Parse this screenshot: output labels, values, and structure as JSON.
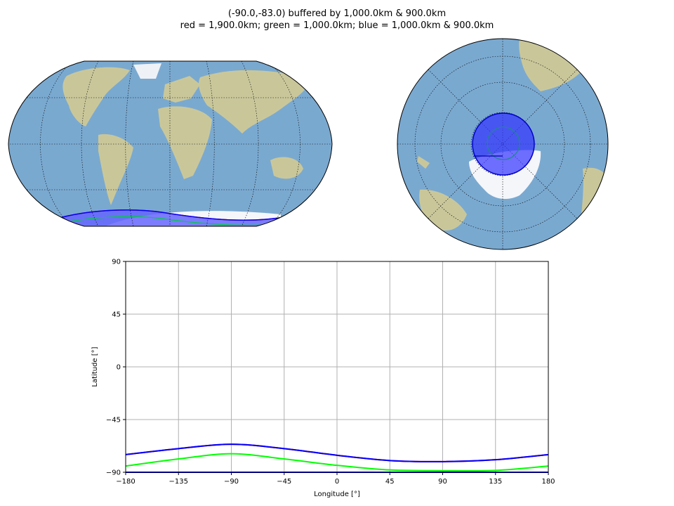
{
  "title_line1": "(-90.0,-83.0) buffered by 1,000.0km & 900.0km",
  "title_line2": "red = 1,900.0km; green = 1,000.0km; blue = 1,000.0km & 900.0km",
  "colors": {
    "red": "#ff0000",
    "green": "#00ff00",
    "blue": "#0000ff",
    "blue_fill": "#6666ff",
    "ocean": "#7aa9d0",
    "land": "#c9c79a",
    "ice": "#f4f6fa",
    "grid": "#b0b0b0"
  },
  "maps": [
    {
      "name": "robinson-world-map",
      "projection": "Robinson"
    },
    {
      "name": "orthographic-south-pole-map",
      "projection": "Orthographic"
    }
  ],
  "chart_data": {
    "type": "line",
    "xlabel": "Longitude [°]",
    "ylabel": "Latitude [°]",
    "xlim": [
      -180,
      180
    ],
    "ylim": [
      -90,
      90
    ],
    "xticks": [
      -180,
      -135,
      -90,
      -45,
      0,
      45,
      90,
      135,
      180
    ],
    "xtick_labels": [
      "−180",
      "−135",
      "−90",
      "−45",
      "0",
      "45",
      "90",
      "135",
      "180"
    ],
    "yticks": [
      -90,
      -45,
      0,
      45,
      90
    ],
    "ytick_labels": [
      "−90",
      "−45",
      "0",
      "45",
      "90"
    ],
    "grid": true,
    "series": [
      {
        "color": "red",
        "x": [
          -180,
          -135,
          -90,
          -45,
          0,
          45,
          90,
          135,
          180
        ],
        "y": [
          -74.9,
          -69.8,
          -66.1,
          -69.8,
          -75.5,
          -80.0,
          -80.9,
          -79.3,
          -74.9
        ]
      },
      {
        "color": "green",
        "x": [
          -180,
          -135,
          -90,
          -45,
          0,
          45,
          90,
          135,
          180
        ],
        "y": [
          -84.7,
          -78.6,
          -74.2,
          -78.6,
          -84.1,
          -88.0,
          -88.7,
          -88.4,
          -84.7
        ]
      },
      {
        "color": "blue",
        "x": [
          -180,
          -135,
          -90,
          -45,
          0,
          45,
          90,
          135,
          180
        ],
        "y": [
          -74.9,
          -69.8,
          -66.1,
          -69.8,
          -75.5,
          -80.0,
          -80.9,
          -79.3,
          -74.9
        ]
      },
      {
        "color": "blue",
        "x": [
          -180,
          180
        ],
        "y": [
          -90.0,
          -90.0
        ]
      }
    ]
  }
}
